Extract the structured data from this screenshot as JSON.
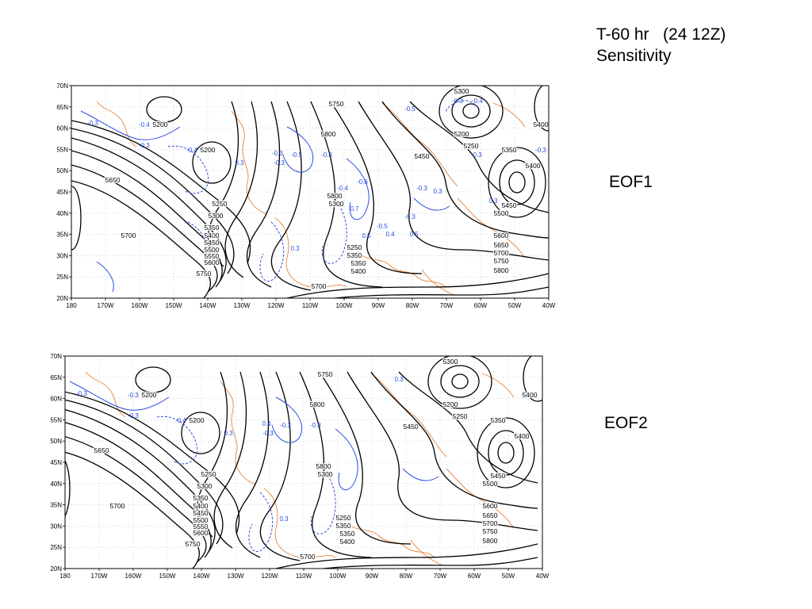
{
  "slide": {
    "title_line1": "T-60 hr   (24 12Z)",
    "title_line2": "Sensitivity"
  },
  "colors": {
    "height_contour": "#000000",
    "sensitivity_contour": "#2a4ee0",
    "coastline": "#e8833a",
    "grid": "#bbbbbb"
  },
  "maps": [
    {
      "label": "EOF1",
      "lat_ticks": [
        "70N",
        "65N",
        "60N",
        "55N",
        "50N",
        "45N",
        "40N",
        "35N",
        "30N",
        "25N",
        "20N"
      ],
      "lon_ticks": [
        "180",
        "170W",
        "160W",
        "150W",
        "140W",
        "130W",
        "120W",
        "110W",
        "100W",
        "90W",
        "80W",
        "70W",
        "60W",
        "50W",
        "40W"
      ],
      "height_labels": [
        "5200",
        "5200",
        "5250",
        "5300",
        "5350",
        "5400",
        "5450",
        "5500",
        "5550",
        "5600",
        "5650",
        "5700",
        "5700",
        "5750",
        "5750",
        "5800",
        "5800",
        "5300",
        "5250",
        "5350",
        "5350",
        "5400",
        "5300",
        "5200",
        "5250",
        "5350",
        "5400",
        "5450",
        "5500",
        "5600",
        "5650",
        "5700",
        "5750",
        "5800",
        "5450",
        "5400"
      ],
      "sens_labels": [
        "-0.3",
        "-0.4",
        "-0.3",
        "-0.4",
        "0.3",
        "-0.3",
        "-0.3",
        "-0.5",
        "-0.3",
        "-0.5",
        "0.3",
        "-0.4",
        "-0.6",
        "0.7",
        "0.5",
        "-0.5",
        "-0.3",
        "0.3",
        "0.5",
        "0.4",
        "-0.3",
        "0.3",
        "-0.3",
        "-0.4",
        "0.3",
        "-0.3"
      ]
    },
    {
      "label": "EOF2",
      "lat_ticks": [
        "70N",
        "65N",
        "60N",
        "55N",
        "50N",
        "45N",
        "40N",
        "35N",
        "30N",
        "25N",
        "20N"
      ],
      "lon_ticks": [
        "180",
        "170W",
        "160W",
        "150W",
        "140W",
        "130W",
        "120W",
        "110W",
        "100W",
        "90W",
        "80W",
        "70W",
        "60W",
        "50W",
        "40W"
      ],
      "height_labels": [
        "5200",
        "5200",
        "5250",
        "5300",
        "5350",
        "5400",
        "5450",
        "5500",
        "5550",
        "5600",
        "5650",
        "5700",
        "5700",
        "5750",
        "5750",
        "5800",
        "5800",
        "5300",
        "5250",
        "5350",
        "5350",
        "5400",
        "5300",
        "5200",
        "5250",
        "5350",
        "5400",
        "5450",
        "5500",
        "5600",
        "5650",
        "5700",
        "5750",
        "5800",
        "5450",
        "5400"
      ],
      "sens_labels": [
        "-0.3",
        "-0.3",
        "-0.3",
        "-0.4",
        "0.3",
        "-0.3",
        "0.4",
        "0.3",
        "-0.3",
        "-0.3",
        "0.3"
      ]
    }
  ]
}
